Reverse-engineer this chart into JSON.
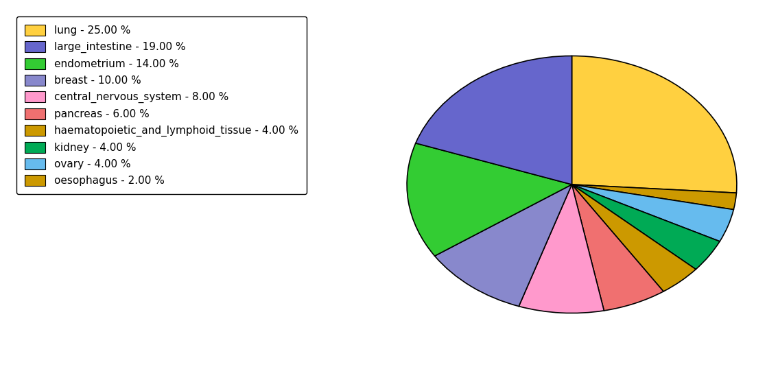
{
  "labels": [
    "lung",
    "oesophagus",
    "ovary",
    "kidney",
    "haematopoietic_and_lymphoid_tissue",
    "pancreas",
    "central_nervous_system",
    "breast",
    "endometrium",
    "large_intestine"
  ],
  "values": [
    25.0,
    2.0,
    4.0,
    4.0,
    4.0,
    6.0,
    8.0,
    10.0,
    14.0,
    19.0
  ],
  "legend_labels": [
    "lung - 25.00 %",
    "large_intestine - 19.00 %",
    "endometrium - 14.00 %",
    "breast - 10.00 %",
    "central_nervous_system - 8.00 %",
    "pancreas - 6.00 %",
    "haematopoietic_and_lymphoid_tissue - 4.00 %",
    "kidney - 4.00 %",
    "ovary - 4.00 %",
    "oesophagus - 2.00 %"
  ],
  "legend_colors": [
    "#FFD040",
    "#6666CC",
    "#33CC33",
    "#8888CC",
    "#FF99CC",
    "#F07070",
    "#CC9900",
    "#00AA55",
    "#66BBEE",
    "#CC9900"
  ],
  "pie_colors": [
    "#FFD040",
    "#CC9900",
    "#66BBEE",
    "#00AA55",
    "#CC9900",
    "#F07070",
    "#FF99CC",
    "#8888CC",
    "#33CC33",
    "#6666CC"
  ],
  "startangle": 90,
  "counterclock": false,
  "aspect_ratio": 0.78,
  "background_color": "#ffffff",
  "figsize": [
    11.34,
    5.38
  ],
  "dpi": 100
}
